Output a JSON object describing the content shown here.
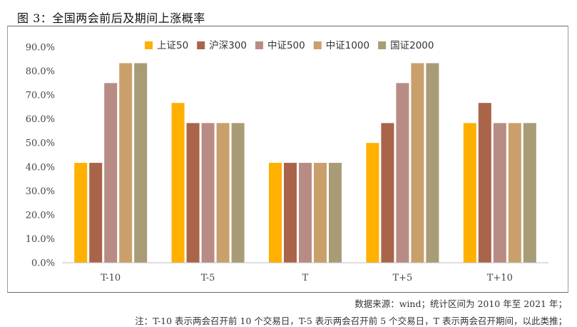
{
  "figure": {
    "title": "图 3：全国两会前后及期间上涨概率",
    "source_note": "数据来源：wind；统计区间为 2010 年至 2021 年；",
    "footnote": "注：T-10 表示两会召开前 10 个交易日，T-5 表示两会召开前 5 个交易日，T 表示两会召开期间，以此类推；"
  },
  "chart_data": {
    "type": "bar",
    "categories": [
      "T-10",
      "T-5",
      "T",
      "T+5",
      "T+10"
    ],
    "series": [
      {
        "name": "上证50",
        "color": "#FFB000",
        "values": [
          41.7,
          66.7,
          41.7,
          50.0,
          58.3
        ]
      },
      {
        "name": "沪深300",
        "color": "#A9644A",
        "values": [
          41.7,
          58.3,
          41.7,
          58.3,
          66.7
        ]
      },
      {
        "name": "中证500",
        "color": "#B88C84",
        "values": [
          75.0,
          58.3,
          41.7,
          75.0,
          58.3
        ]
      },
      {
        "name": "中证1000",
        "color": "#C9A06B",
        "values": [
          83.3,
          58.3,
          41.7,
          83.3,
          58.3
        ]
      },
      {
        "name": "国证2000",
        "color": "#A89C76",
        "values": [
          83.3,
          58.3,
          41.7,
          83.3,
          58.3
        ]
      }
    ],
    "yticks": [
      "0.0%",
      "10.0%",
      "20.0%",
      "30.0%",
      "40.0%",
      "50.0%",
      "60.0%",
      "70.0%",
      "80.0%",
      "90.0%"
    ],
    "ylim": [
      0,
      90
    ],
    "grid": false,
    "legend_position": "top-center"
  }
}
